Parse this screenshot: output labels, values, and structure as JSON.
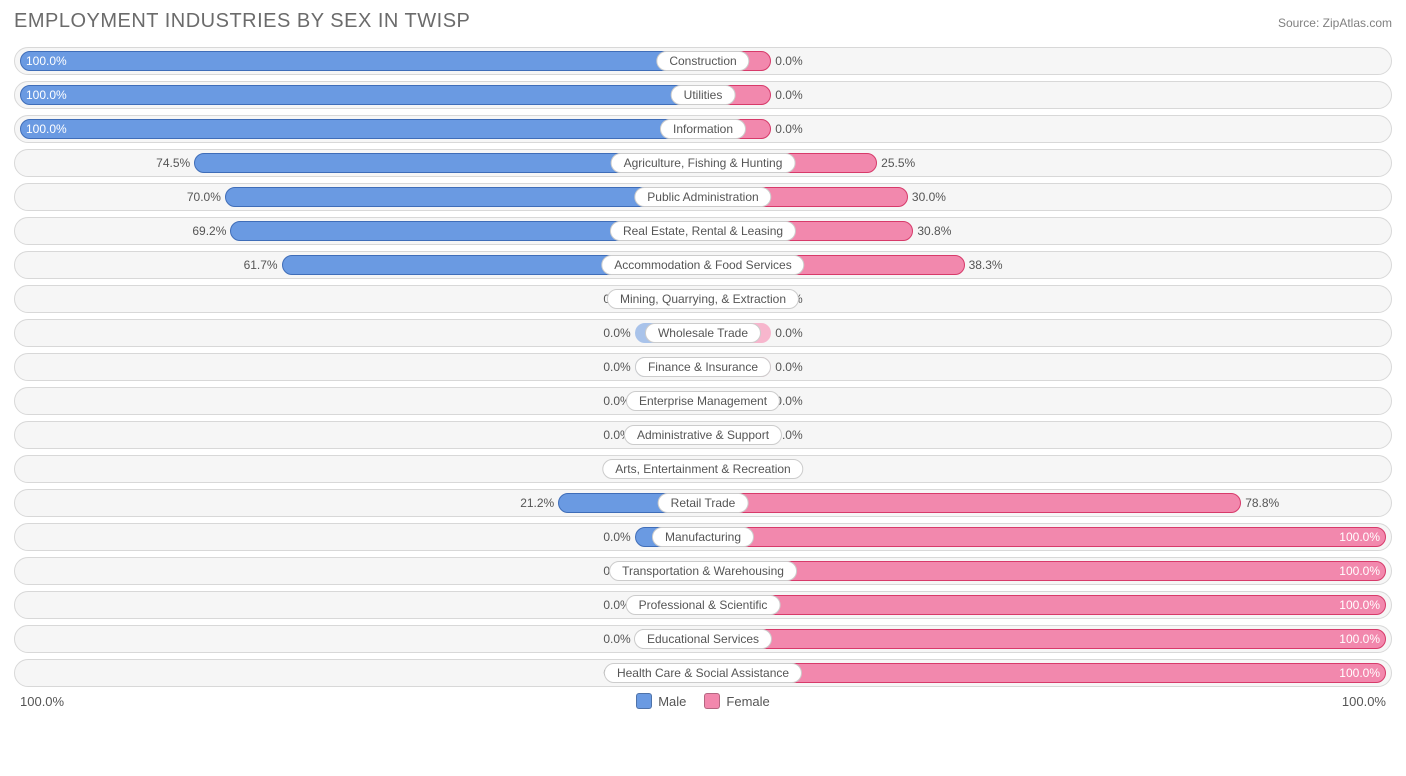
{
  "title": "EMPLOYMENT INDUSTRIES BY SEX IN TWISP",
  "source": "Source: ZipAtlas.com",
  "axis_left": "100.0%",
  "axis_right": "100.0%",
  "legend": {
    "male": "Male",
    "female": "Female"
  },
  "colors": {
    "male_fill": "#6a9ae2",
    "male_border": "#3f6db8",
    "female_fill": "#f288ad",
    "female_border": "#d73a6a",
    "male_faded": "#a9c3ea",
    "female_faded": "#f7b6cd",
    "row_bg": "#f6f6f6",
    "row_border": "#d8d8d8",
    "text": "#555555",
    "title_text": "#6b6b6b"
  },
  "chart": {
    "type": "diverging-bar",
    "scale_max_pct": 100,
    "inner_bar_width_pct": 10,
    "rows": [
      {
        "label": "Construction",
        "male": 100.0,
        "female": 0.0,
        "male_label": "100.0%",
        "female_label": "0.0%",
        "faded": false
      },
      {
        "label": "Utilities",
        "male": 100.0,
        "female": 0.0,
        "male_label": "100.0%",
        "female_label": "0.0%",
        "faded": false
      },
      {
        "label": "Information",
        "male": 100.0,
        "female": 0.0,
        "male_label": "100.0%",
        "female_label": "0.0%",
        "faded": false
      },
      {
        "label": "Agriculture, Fishing & Hunting",
        "male": 74.5,
        "female": 25.5,
        "male_label": "74.5%",
        "female_label": "25.5%",
        "faded": false
      },
      {
        "label": "Public Administration",
        "male": 70.0,
        "female": 30.0,
        "male_label": "70.0%",
        "female_label": "30.0%",
        "faded": false
      },
      {
        "label": "Real Estate, Rental & Leasing",
        "male": 69.2,
        "female": 30.8,
        "male_label": "69.2%",
        "female_label": "30.8%",
        "faded": false
      },
      {
        "label": "Accommodation & Food Services",
        "male": 61.7,
        "female": 38.3,
        "male_label": "61.7%",
        "female_label": "38.3%",
        "faded": false
      },
      {
        "label": "Mining, Quarrying, & Extraction",
        "male": 0.0,
        "female": 0.0,
        "male_label": "0.0%",
        "female_label": "0.0%",
        "faded": true
      },
      {
        "label": "Wholesale Trade",
        "male": 0.0,
        "female": 0.0,
        "male_label": "0.0%",
        "female_label": "0.0%",
        "faded": true
      },
      {
        "label": "Finance & Insurance",
        "male": 0.0,
        "female": 0.0,
        "male_label": "0.0%",
        "female_label": "0.0%",
        "faded": true
      },
      {
        "label": "Enterprise Management",
        "male": 0.0,
        "female": 0.0,
        "male_label": "0.0%",
        "female_label": "0.0%",
        "faded": true
      },
      {
        "label": "Administrative & Support",
        "male": 0.0,
        "female": 0.0,
        "male_label": "0.0%",
        "female_label": "0.0%",
        "faded": true
      },
      {
        "label": "Arts, Entertainment & Recreation",
        "male": 0.0,
        "female": 0.0,
        "male_label": "0.0%",
        "female_label": "0.0%",
        "faded": true
      },
      {
        "label": "Retail Trade",
        "male": 21.2,
        "female": 78.8,
        "male_label": "21.2%",
        "female_label": "78.8%",
        "faded": false
      },
      {
        "label": "Manufacturing",
        "male": 0.0,
        "female": 100.0,
        "male_label": "0.0%",
        "female_label": "100.0%",
        "faded": false
      },
      {
        "label": "Transportation & Warehousing",
        "male": 0.0,
        "female": 100.0,
        "male_label": "0.0%",
        "female_label": "100.0%",
        "faded": false
      },
      {
        "label": "Professional & Scientific",
        "male": 0.0,
        "female": 100.0,
        "male_label": "0.0%",
        "female_label": "100.0%",
        "faded": false
      },
      {
        "label": "Educational Services",
        "male": 0.0,
        "female": 100.0,
        "male_label": "0.0%",
        "female_label": "100.0%",
        "faded": false
      },
      {
        "label": "Health Care & Social Assistance",
        "male": 0.0,
        "female": 100.0,
        "male_label": "0.0%",
        "female_label": "100.0%",
        "faded": false
      }
    ]
  }
}
